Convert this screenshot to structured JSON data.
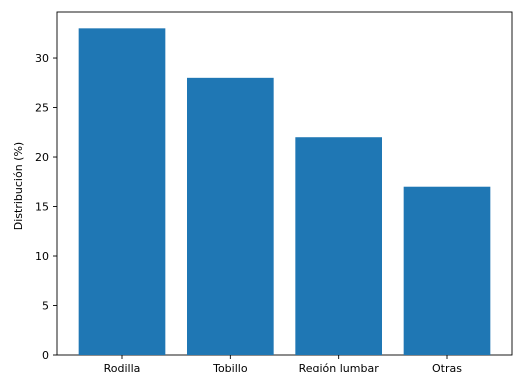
{
  "chart_data": {
    "type": "bar",
    "categories": [
      "Rodilla",
      "Tobillo",
      "Región lumbar",
      "Otras"
    ],
    "values": [
      33,
      28,
      22,
      17
    ],
    "xlabel": "",
    "ylabel": "Distribución (%)",
    "ylim": [
      0,
      34.65
    ],
    "yticks": [
      0,
      5,
      10,
      15,
      20,
      25,
      30
    ],
    "grid": false,
    "bar_color": "#1f77b4"
  }
}
